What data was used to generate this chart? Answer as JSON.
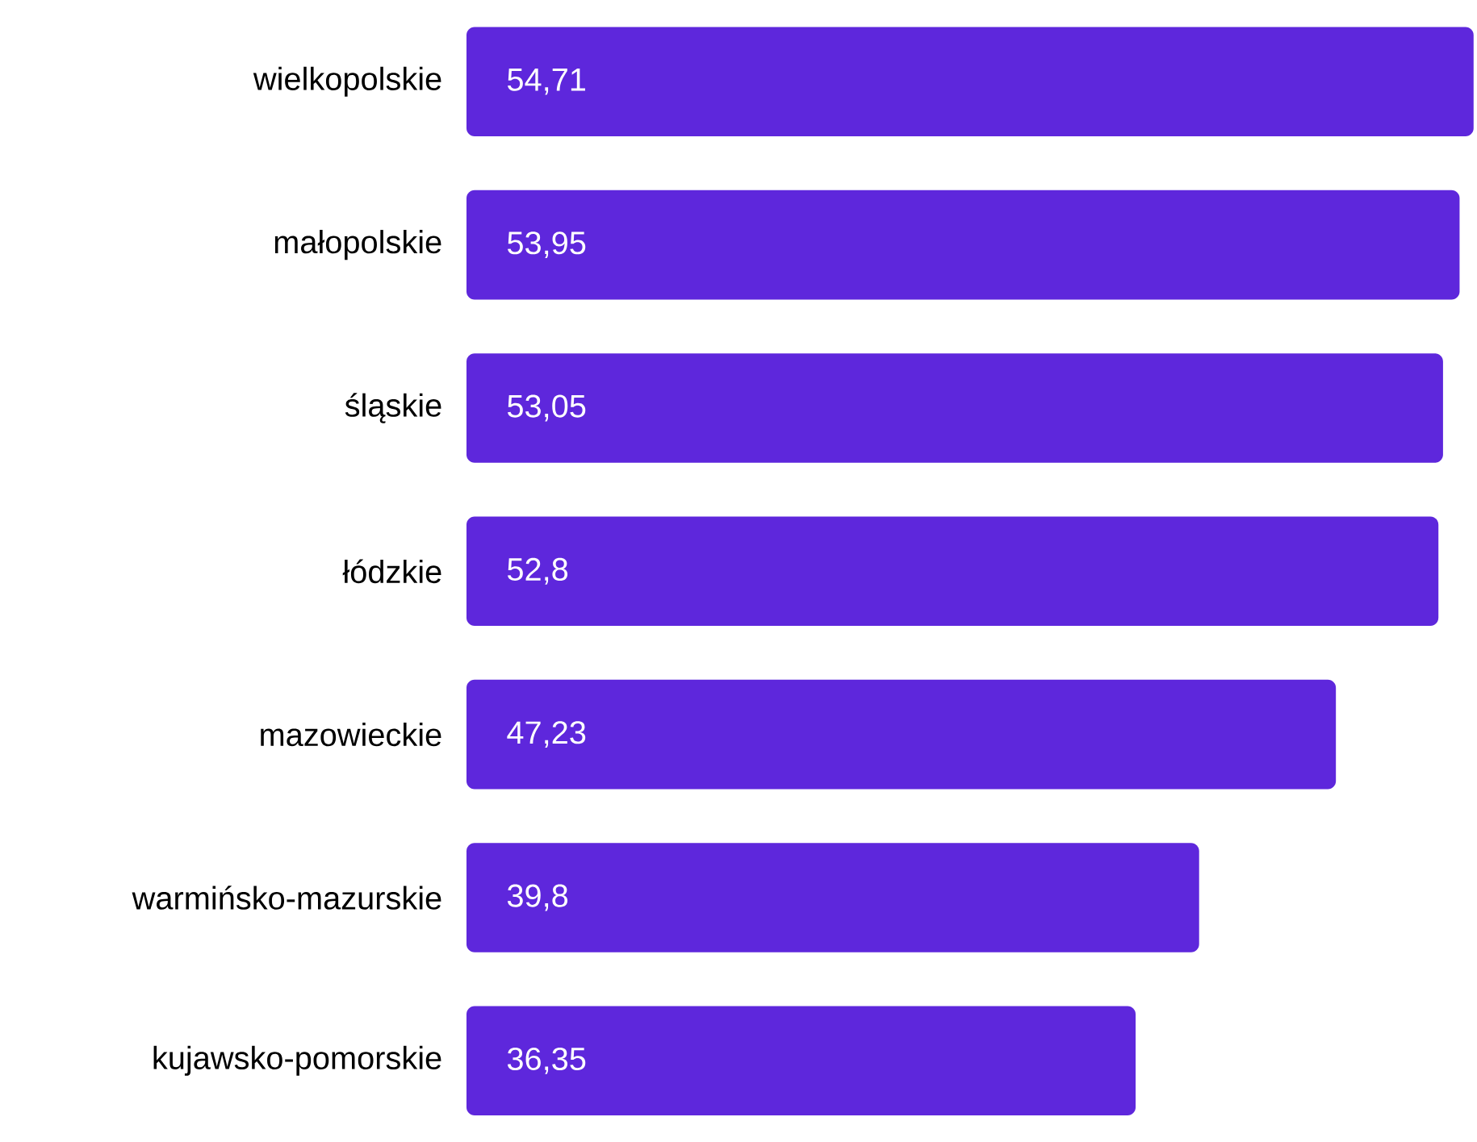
{
  "chart_data": {
    "type": "bar",
    "orientation": "horizontal",
    "tick_labels": "y",
    "color": "#5e27dc",
    "categories": [
      "wielkopolskie",
      "małopolskie",
      "śląskie",
      "łódzkie",
      "mazowieckie",
      "warmińsko-mazurskie",
      "kujawsko-pomorskie"
    ],
    "values": [
      54.71,
      53.95,
      53.05,
      52.8,
      47.23,
      39.8,
      36.35
    ],
    "value_labels": [
      "54,71",
      "53,95",
      "53,05",
      "52,8",
      "47,23",
      "39,8",
      "36,35"
    ]
  }
}
